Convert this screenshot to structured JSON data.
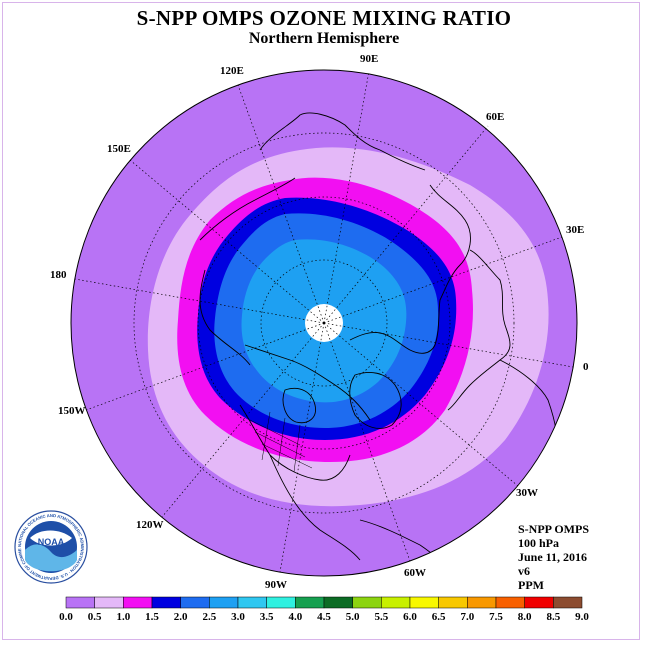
{
  "title": "S-NPP OMPS OZONE MIXING RATIO",
  "subtitle": "Northern Hemisphere",
  "longitude_labels": [
    "90E",
    "60E",
    "30E",
    "0",
    "30W",
    "60W",
    "90W",
    "120W",
    "150W",
    "180",
    "150E",
    "120E"
  ],
  "info": {
    "instrument": "S-NPP OMPS",
    "level": "100 hPa",
    "date": "June 11, 2016",
    "version": "v6",
    "units": "PPM"
  },
  "logo": {
    "text": "NOAA",
    "ring_text": "NATIONAL OCEANIC AND ATMOSPHERIC ADMINISTRATION · U.S. DEPARTMENT OF COMMERCE"
  },
  "colorbar": {
    "ticks": [
      "0.0",
      "0.5",
      "1.0",
      "1.5",
      "2.0",
      "2.5",
      "3.0",
      "3.5",
      "4.0",
      "4.5",
      "5.0",
      "5.5",
      "6.0",
      "6.5",
      "7.0",
      "7.5",
      "8.0",
      "8.5",
      "9.0"
    ],
    "colors": [
      "#b873f5",
      "#e4b8f8",
      "#f20ff2",
      "#0000e0",
      "#1e6cf0",
      "#1ea0f2",
      "#2fc7f0",
      "#2ff0e0",
      "#16a050",
      "#0c6c24",
      "#8cd410",
      "#c8f000",
      "#f8f800",
      "#f8c800",
      "#f89800",
      "#f86000",
      "#f00000",
      "#8c4c30"
    ]
  },
  "map_colors": {
    "outer": "#b873f5",
    "band_0_5": "#e4b8f8",
    "band_1_0": "#f20ff2",
    "band_1_5": "#0000e0",
    "band_2_0": "#1e6cf0",
    "band_2_5": "#1ea0f2",
    "pole_mask": "#ffffff"
  }
}
